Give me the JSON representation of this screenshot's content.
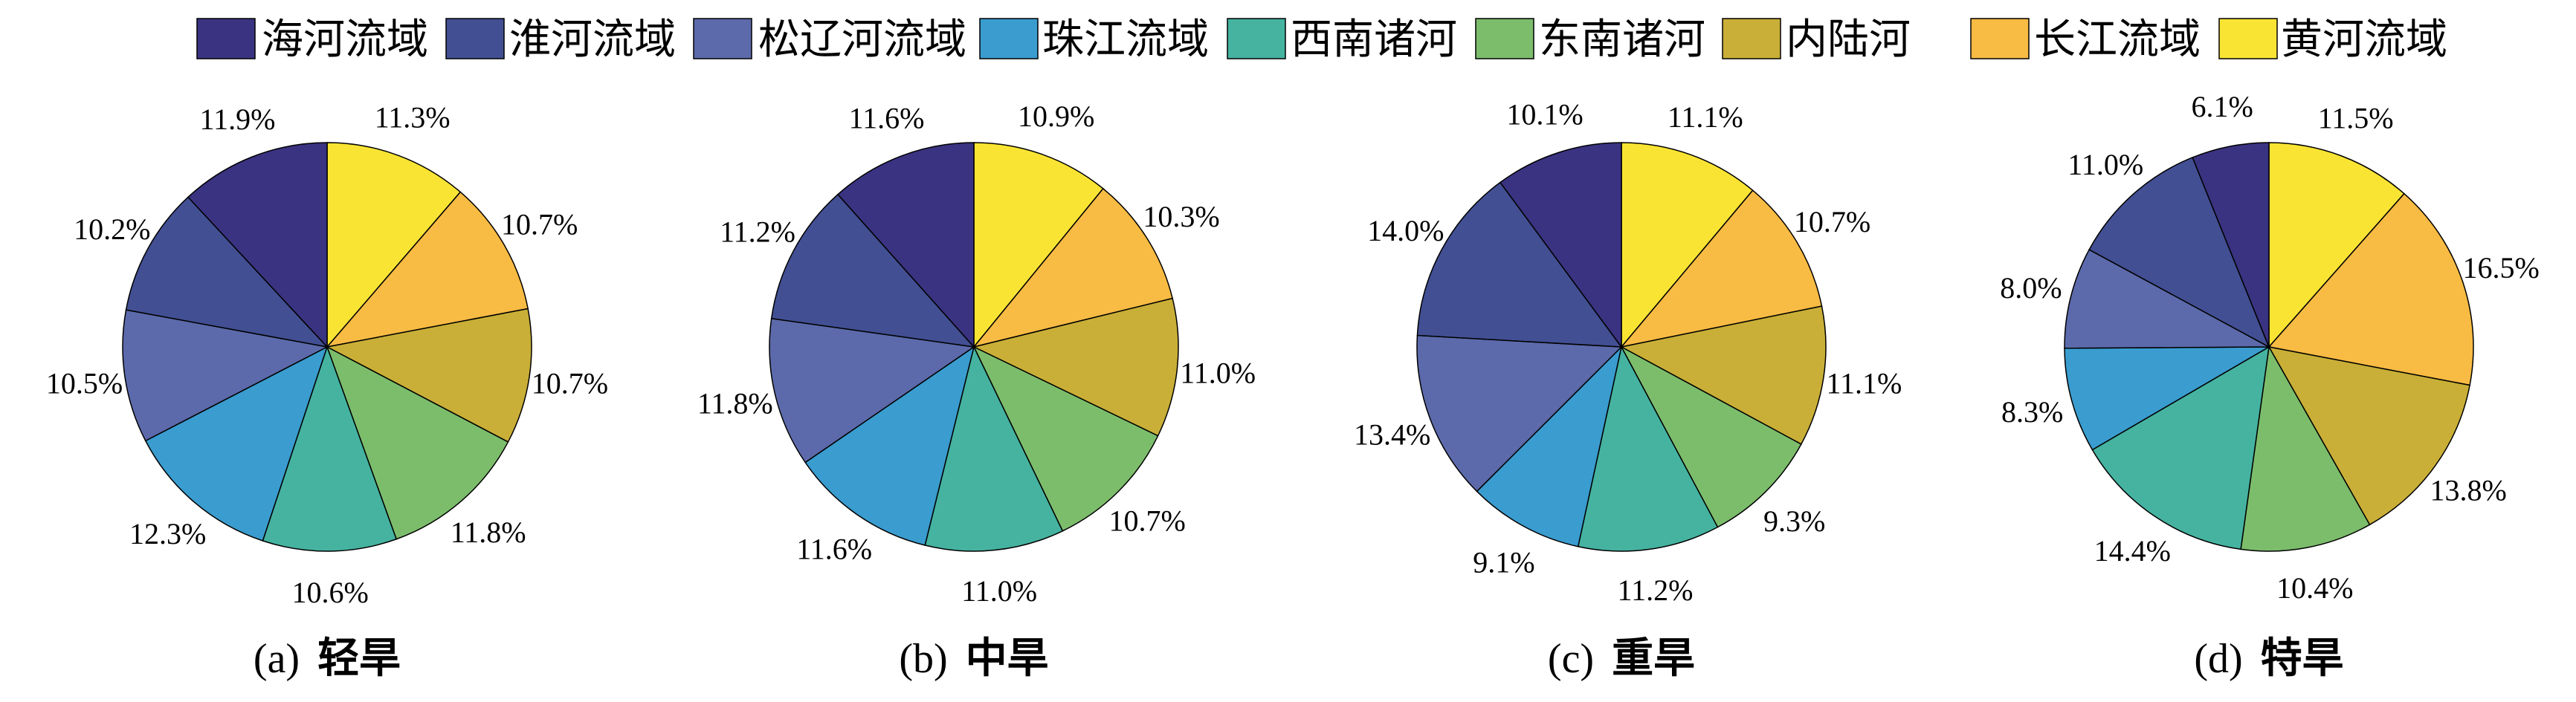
{
  "legend": {
    "entries": [
      {
        "name": "海河流域",
        "color": "#3a3381"
      },
      {
        "name": "淮河流域",
        "color": "#424f93"
      },
      {
        "name": "松辽河流域",
        "color": "#5c6aab"
      },
      {
        "name": "珠江流域",
        "color": "#3a9ccf"
      },
      {
        "name": "西南诸河",
        "color": "#45b3a0"
      },
      {
        "name": "东南诸河",
        "color": "#7cbd6c"
      },
      {
        "name": "内陆河",
        "color": "#c9af37"
      },
      {
        "name": "长江流域",
        "color": "#f8bb43"
      },
      {
        "name": "黄河流域",
        "color": "#f9e434"
      }
    ]
  },
  "chart_data": [
    {
      "type": "pie",
      "caption_letter": "(a)",
      "caption_title": "轻旱",
      "slice_order": "clockwise-from-top",
      "slices": [
        {
          "name": "黄河流域",
          "value": 11.3,
          "label": "11.3%"
        },
        {
          "name": "长江流域",
          "value": 10.7,
          "label": "10.7%"
        },
        {
          "name": "内陆河",
          "value": 10.7,
          "label": "10.7%"
        },
        {
          "name": "东南诸河",
          "value": 11.8,
          "label": "11.8%"
        },
        {
          "name": "西南诸河",
          "value": 10.6,
          "label": "10.6%"
        },
        {
          "name": "珠江流域",
          "value": 12.3,
          "label": "12.3%"
        },
        {
          "name": "松辽河流域",
          "value": 10.5,
          "label": "10.5%"
        },
        {
          "name": "淮河流域",
          "value": 10.2,
          "label": "10.2%"
        },
        {
          "name": "海河流域",
          "value": 11.9,
          "label": "11.9%"
        }
      ]
    },
    {
      "type": "pie",
      "caption_letter": "(b)",
      "caption_title": "中旱",
      "slice_order": "clockwise-from-top",
      "slices": [
        {
          "name": "黄河流域",
          "value": 10.9,
          "label": "10.9%"
        },
        {
          "name": "长江流域",
          "value": 10.3,
          "label": "10.3%"
        },
        {
          "name": "内陆河",
          "value": 11.0,
          "label": "11.0%"
        },
        {
          "name": "东南诸河",
          "value": 10.7,
          "label": "10.7%"
        },
        {
          "name": "西南诸河",
          "value": 11.0,
          "label": "11.0%"
        },
        {
          "name": "珠江流域",
          "value": 11.6,
          "label": "11.6%"
        },
        {
          "name": "松辽河流域",
          "value": 11.8,
          "label": "11.8%"
        },
        {
          "name": "淮河流域",
          "value": 11.2,
          "label": "11.2%"
        },
        {
          "name": "海河流域",
          "value": 11.6,
          "label": "11.6%"
        }
      ]
    },
    {
      "type": "pie",
      "caption_letter": "(c)",
      "caption_title": "重旱",
      "slice_order": "clockwise-from-top",
      "slices": [
        {
          "name": "黄河流域",
          "value": 11.1,
          "label": "11.1%"
        },
        {
          "name": "长江流域",
          "value": 10.7,
          "label": "10.7%"
        },
        {
          "name": "内陆河",
          "value": 11.1,
          "label": "11.1%"
        },
        {
          "name": "东南诸河",
          "value": 9.3,
          "label": "9.3%"
        },
        {
          "name": "西南诸河",
          "value": 11.2,
          "label": "11.2%"
        },
        {
          "name": "珠江流域",
          "value": 9.1,
          "label": "9.1%"
        },
        {
          "name": "松辽河流域",
          "value": 13.4,
          "label": "13.4%"
        },
        {
          "name": "淮河流域",
          "value": 14.0,
          "label": "14.0%"
        },
        {
          "name": "海河流域",
          "value": 10.1,
          "label": "10.1%"
        }
      ]
    },
    {
      "type": "pie",
      "caption_letter": "(d)",
      "caption_title": "特旱",
      "slice_order": "clockwise-from-top",
      "slices": [
        {
          "name": "黄河流域",
          "value": 11.5,
          "label": "11.5%"
        },
        {
          "name": "长江流域",
          "value": 16.5,
          "label": "16.5%"
        },
        {
          "name": "内陆河",
          "value": 13.8,
          "label": "13.8%"
        },
        {
          "name": "东南诸河",
          "value": 10.4,
          "label": "10.4%"
        },
        {
          "name": "西南诸河",
          "value": 14.4,
          "label": "14.4%"
        },
        {
          "name": "珠江流域",
          "value": 8.3,
          "label": "8.3%"
        },
        {
          "name": "松辽河流域",
          "value": 8.0,
          "label": "8.0%"
        },
        {
          "name": "淮河流域",
          "value": 11.0,
          "label": "11.0%"
        },
        {
          "name": "海河流域",
          "value": 6.1,
          "label": "6.1%"
        }
      ]
    }
  ]
}
